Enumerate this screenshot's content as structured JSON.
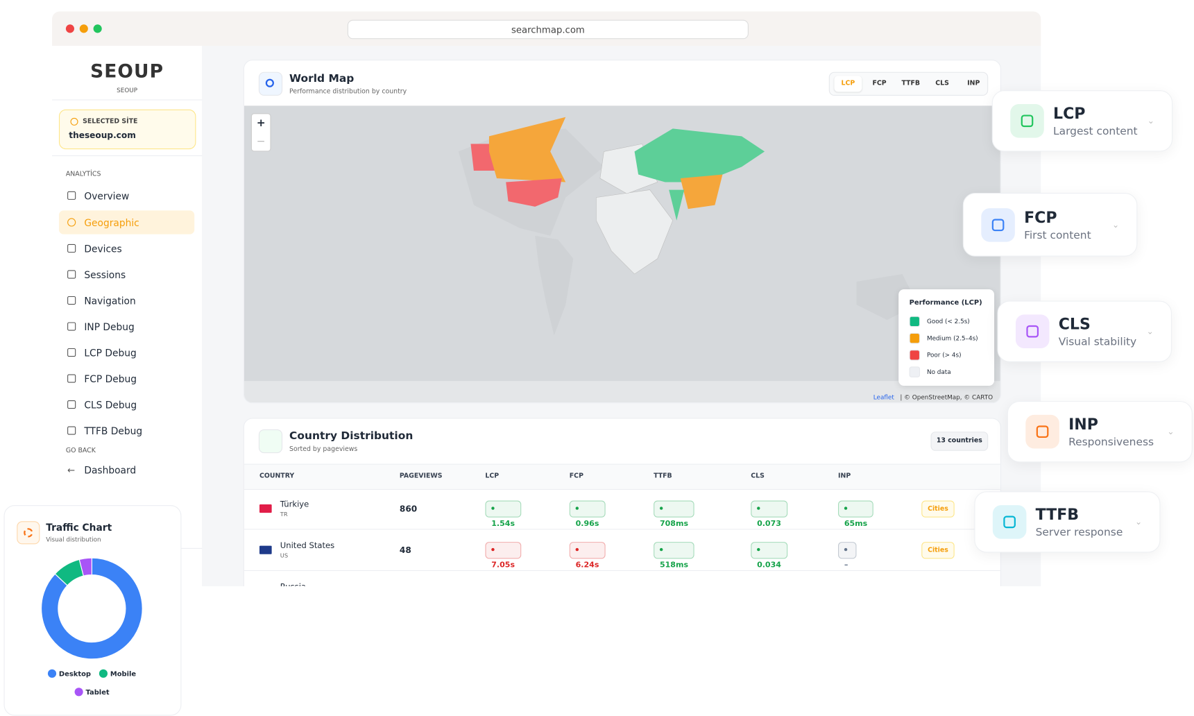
{
  "browser": {
    "url": "searchmap.com"
  },
  "sidebar": {
    "logo": "SEOUP",
    "logo_caption": "SEOUP",
    "site_label": "SELECTED SİTE",
    "site": "theseoup.com",
    "section": "ANALYTİCS",
    "nav": [
      "Overview",
      "Geographic",
      "Devices",
      "Sessions",
      "Navigation",
      "INP Debug",
      "LCP Debug",
      "FCP Debug",
      "CLS Debug",
      "TTFB Debug"
    ],
    "active": 1,
    "back_label": "GO BACK",
    "back_item": "Dashboard"
  },
  "map": {
    "title": "World Map",
    "subtitle": "Performance distribution by country",
    "tabs": [
      "LCP",
      "FCP",
      "TTFB",
      "CLS",
      "INP"
    ],
    "active_tab": 0,
    "zoom": [
      "+",
      "−"
    ],
    "legend": {
      "title": "Performance (LCP)",
      "items": [
        {
          "label": "Good (< 2.5s)",
          "color": "#10b981"
        },
        {
          "label": "Medium (2.5–4s)",
          "color": "#f59e0b"
        },
        {
          "label": "Poor (> 4s)",
          "color": "#ef4444"
        },
        {
          "label": "No data",
          "color": "#eef0f4"
        }
      ]
    },
    "attribution": [
      "Leaflet",
      "| © OpenStreetMap, © CARTO"
    ]
  },
  "countries": {
    "title": "Country Distribution",
    "subtitle": "Sorted by pageviews",
    "badge": "13 countries",
    "columns": [
      "COUNTRY",
      "PAGEVIEWS",
      "LCP",
      "FCP",
      "TTFB",
      "CLS",
      "INP"
    ],
    "rows": [
      {
        "name": "Türkiye",
        "code": "TR",
        "pageviews": "860",
        "metrics": [
          {
            "text": "1.54s",
            "color": "#16a34a"
          },
          {
            "text": "0.96s",
            "color": "#16a34a"
          },
          {
            "text": "708ms",
            "color": "#16a34a"
          },
          {
            "text": "0.073",
            "color": "#16a34a"
          },
          {
            "text": "65ms",
            "color": "#16a34a"
          }
        ],
        "action": "Cities"
      },
      {
        "name": "United States",
        "code": "US",
        "pageviews": "48",
        "metrics": [
          {
            "text": "7.05s",
            "color": "#dc2626"
          },
          {
            "text": "6.24s",
            "color": "#dc2626"
          },
          {
            "text": "518ms",
            "color": "#16a34a"
          },
          {
            "text": "0.034",
            "color": "#16a34a"
          },
          {
            "text": "–",
            "color": "#64748b"
          }
        ],
        "action": "Cities"
      },
      {
        "name": "Russia"
      }
    ]
  },
  "metric_cards": [
    {
      "title": "LCP",
      "subtitle": "Largest content",
      "color": "#22c55e"
    },
    {
      "title": "FCP",
      "subtitle": "First content",
      "color": "#3b82f6"
    },
    {
      "title": "CLS",
      "subtitle": "Visual stability",
      "color": "#a855f7"
    },
    {
      "title": "INP",
      "subtitle": "Responsiveness",
      "color": "#f97316"
    },
    {
      "title": "TTFB",
      "subtitle": "Server response",
      "color": "#06b6d4"
    }
  ],
  "chart_data": {
    "type": "donut",
    "title": "Traffic Chart",
    "subtitle": "Visual distribution",
    "categories": [
      "Desktop",
      "Mobile",
      "Tablet"
    ],
    "values": [
      87,
      9,
      4
    ],
    "colors": [
      "#3b82f6",
      "#10b981",
      "#a855f7"
    ]
  }
}
